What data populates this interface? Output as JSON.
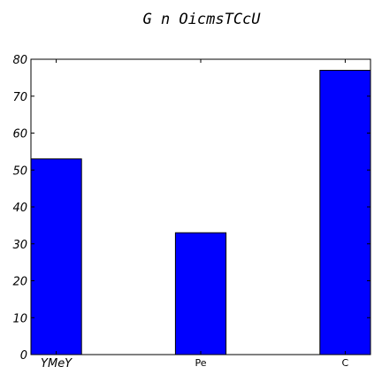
{
  "chart_data": {
    "type": "bar",
    "title": "G n OicmsTCcU",
    "categories": [
      "YMeY",
      "Pe",
      "C"
    ],
    "values": [
      53,
      33,
      77
    ],
    "xlabel": "",
    "ylabel": "",
    "ylim": [
      0,
      80
    ],
    "yticks": [
      0,
      10,
      20,
      30,
      40,
      50,
      60,
      70,
      80
    ],
    "bar_color": "#0000ff",
    "edge_color": "#000000",
    "grid": false,
    "legend": false
  }
}
